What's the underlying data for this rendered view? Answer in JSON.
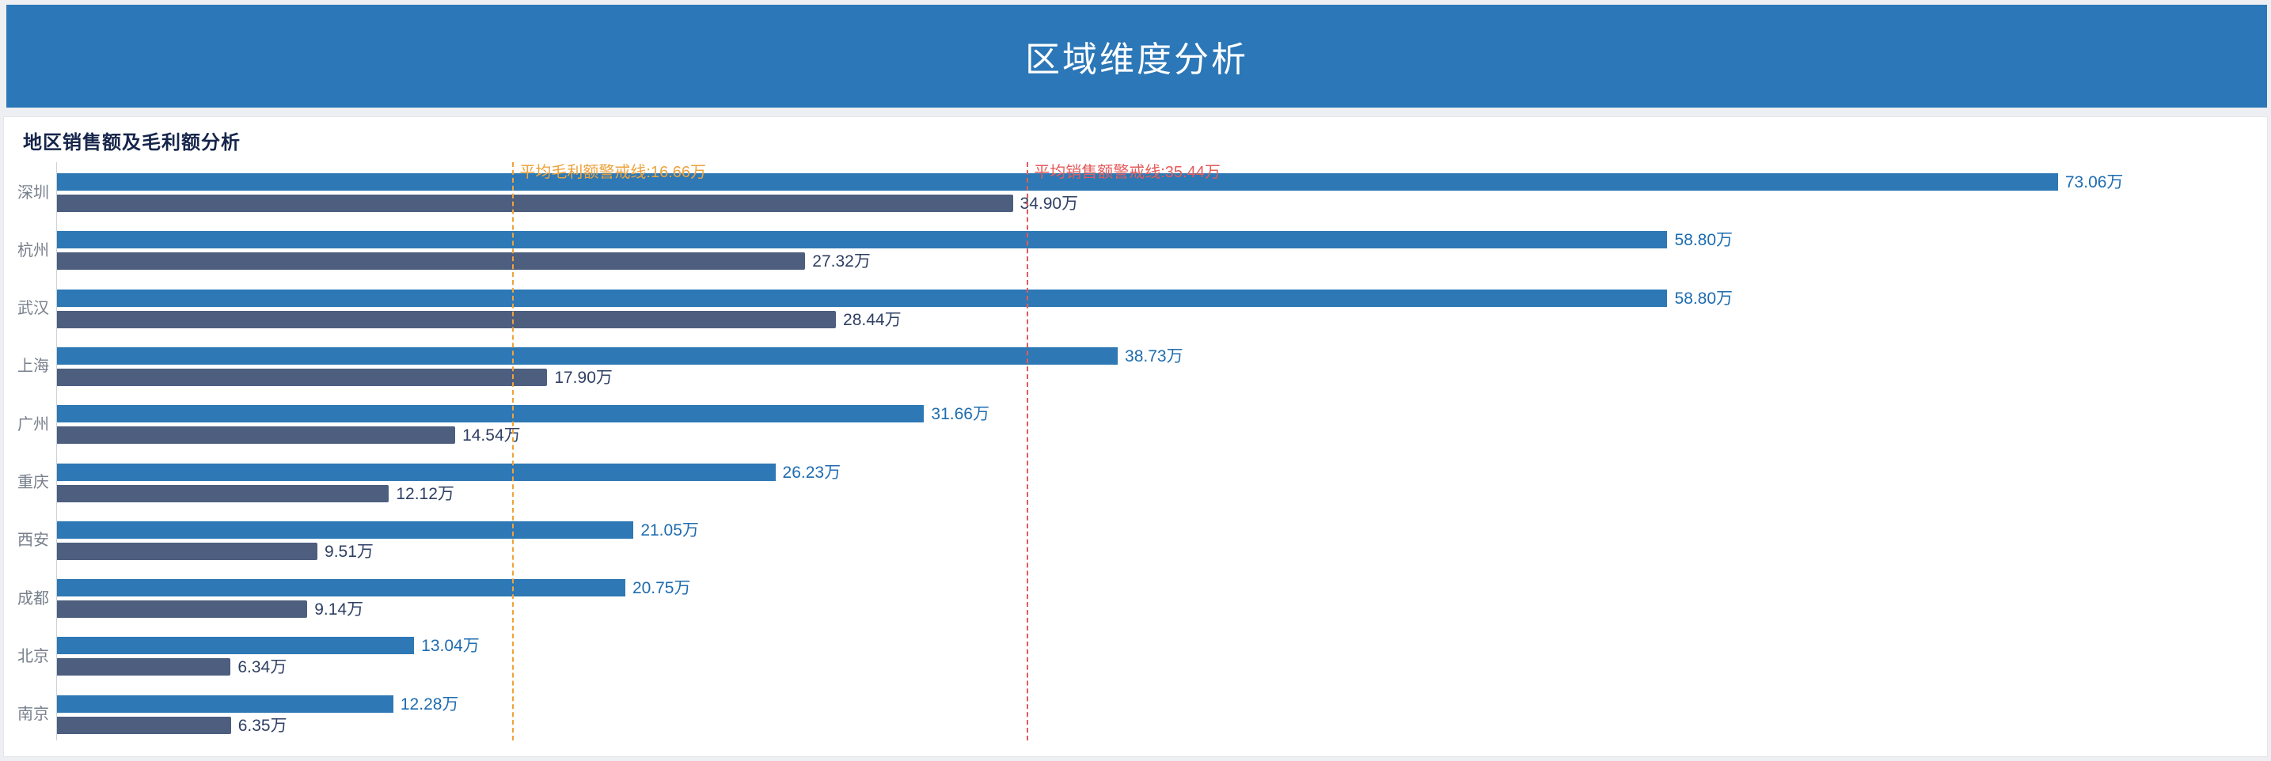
{
  "header": {
    "title": "区域维度分析"
  },
  "card": {
    "title": "地区销售额及毛利额分析"
  },
  "colors": {
    "header_bg": "#2b77b7",
    "page_bg": "#edeff2",
    "card_bg": "#ffffff",
    "card_border": "#e3e6ea",
    "chart_title": "#16254a",
    "axis_line": "#ccd2d9",
    "category_label": "#78808c",
    "sales_bar": "#2d78b5",
    "profit_bar": "#4d5e7f",
    "sales_value_label": "#1e6cb0",
    "profit_value_label": "#2e3f63",
    "profit_refline": "#eda33d",
    "sales_refline": "#e35b5b"
  },
  "chart_data": {
    "type": "bar",
    "orientation": "horizontal",
    "title": "地区销售额及毛利额分析",
    "unit": "万",
    "categories": [
      "深圳",
      "杭州",
      "武汉",
      "上海",
      "广州",
      "重庆",
      "西安",
      "成都",
      "北京",
      "南京"
    ],
    "series": [
      {
        "name": "销售额",
        "values": [
          73.06,
          58.8,
          58.8,
          38.73,
          31.66,
          26.23,
          21.05,
          20.75,
          13.04,
          12.28
        ],
        "labels": [
          "73.06万",
          "58.80万",
          "58.80万",
          "38.73万",
          "31.66万",
          "26.23万",
          "21.05万",
          "20.75万",
          "13.04万",
          "12.28万"
        ]
      },
      {
        "name": "毛利额",
        "values": [
          34.9,
          27.32,
          28.44,
          17.9,
          14.54,
          12.12,
          9.51,
          9.14,
          6.34,
          6.35
        ],
        "labels": [
          "34.90万",
          "27.32万",
          "28.44万",
          "17.90万",
          "14.54万",
          "12.12万",
          "9.51万",
          "9.14万",
          "6.34万",
          "6.35万"
        ]
      }
    ],
    "reference_lines": [
      {
        "name": "平均毛利额警戒线",
        "value": 16.66,
        "label": "平均毛利额警戒线:16.66万"
      },
      {
        "name": "平均销售额警戒线",
        "value": 35.44,
        "label": "平均销售额警戒线:35.44万"
      }
    ],
    "xlim": [
      0,
      80
    ],
    "grid": false,
    "legend_position": "none",
    "value_labels_shown": true
  }
}
